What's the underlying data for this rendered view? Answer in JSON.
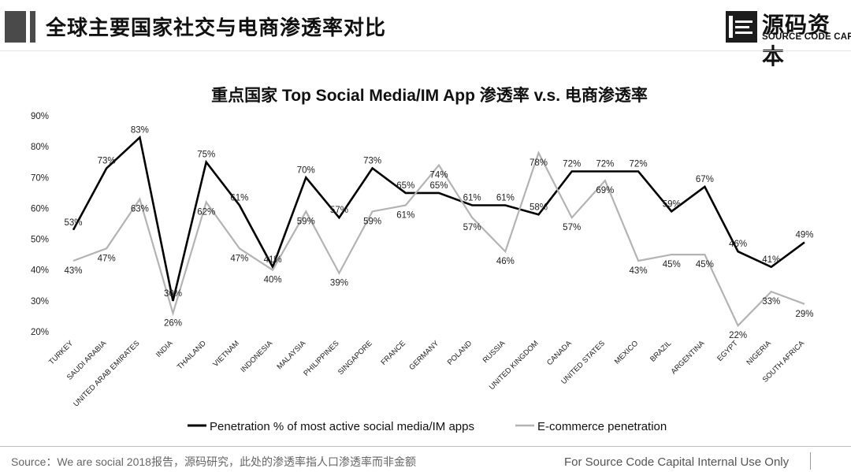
{
  "header": {
    "title": "全球主要国家社交与电商渗透率对比",
    "logo_name": "源码资本",
    "logo_subtitle": "SOURCE CODE CAPITAL"
  },
  "chart_data": {
    "type": "line",
    "title": "重点国家 Top Social Media/IM App 渗透率 v.s. 电商渗透率",
    "xlabel": "",
    "ylabel": "",
    "ylim": [
      0.2,
      0.9
    ],
    "yticks": [
      "20%",
      "30%",
      "40%",
      "50%",
      "60%",
      "70%",
      "80%",
      "90%"
    ],
    "grid": false,
    "legend_position": "bottom",
    "categories": [
      "TURKEY",
      "SAUDI ARABIA",
      "UNITED ARAB EMIRATES",
      "INDIA",
      "THAILAND",
      "VIETNAM",
      "INDONESIA",
      "MALAYSIA",
      "PHILIPPINES",
      "SINGAPORE",
      "FRANCE",
      "GERMANY",
      "POLAND",
      "RUSSIA",
      "UNITED KINGDOM",
      "CANADA",
      "UNITED STATES",
      "MEXICO",
      "BRAZIL",
      "ARGENTINA",
      "EGYPT",
      "NIGERIA",
      "SOUTH AFRICA"
    ],
    "series": [
      {
        "name": "Penetration % of most active social media/IM apps",
        "color": "#000000",
        "values": [
          0.53,
          0.73,
          0.83,
          0.3,
          0.75,
          0.61,
          0.41,
          0.7,
          0.57,
          0.73,
          0.65,
          0.65,
          0.61,
          0.61,
          0.58,
          0.72,
          0.72,
          0.72,
          0.59,
          0.67,
          0.46,
          0.41,
          0.49
        ],
        "labels": [
          "53%",
          "73%",
          "83%",
          "30%",
          "75%",
          "61%",
          "41%",
          "70%",
          "57%",
          "73%",
          "65%",
          "65%",
          "61%",
          "61%",
          "58%",
          "72%",
          "72%",
          "72%",
          "59%",
          "67%",
          "46%",
          "41%",
          "49%"
        ]
      },
      {
        "name": "E-commerce penetration",
        "color": "#b3b3b3",
        "values": [
          0.43,
          0.47,
          0.63,
          0.26,
          0.62,
          0.47,
          0.4,
          0.59,
          0.39,
          0.59,
          0.61,
          0.74,
          0.57,
          0.46,
          0.78,
          0.57,
          0.69,
          0.43,
          0.45,
          0.45,
          0.22,
          0.33,
          0.29
        ],
        "labels": [
          "43%",
          "47%",
          "63%",
          "26%",
          "62%",
          "47%",
          "40%",
          "59%",
          "39%",
          "59%",
          "61%",
          "74%",
          "57%",
          "46%",
          "78%",
          "57%",
          "69%",
          "43%",
          "45%",
          "45%",
          "22%",
          "33%",
          "29%"
        ]
      }
    ]
  },
  "footer": {
    "source": "Source：We are social 2018报告，源码研究，此处的渗透率指人口渗透率而非金额",
    "internal": "For Source Code Capital Internal Use Only"
  }
}
